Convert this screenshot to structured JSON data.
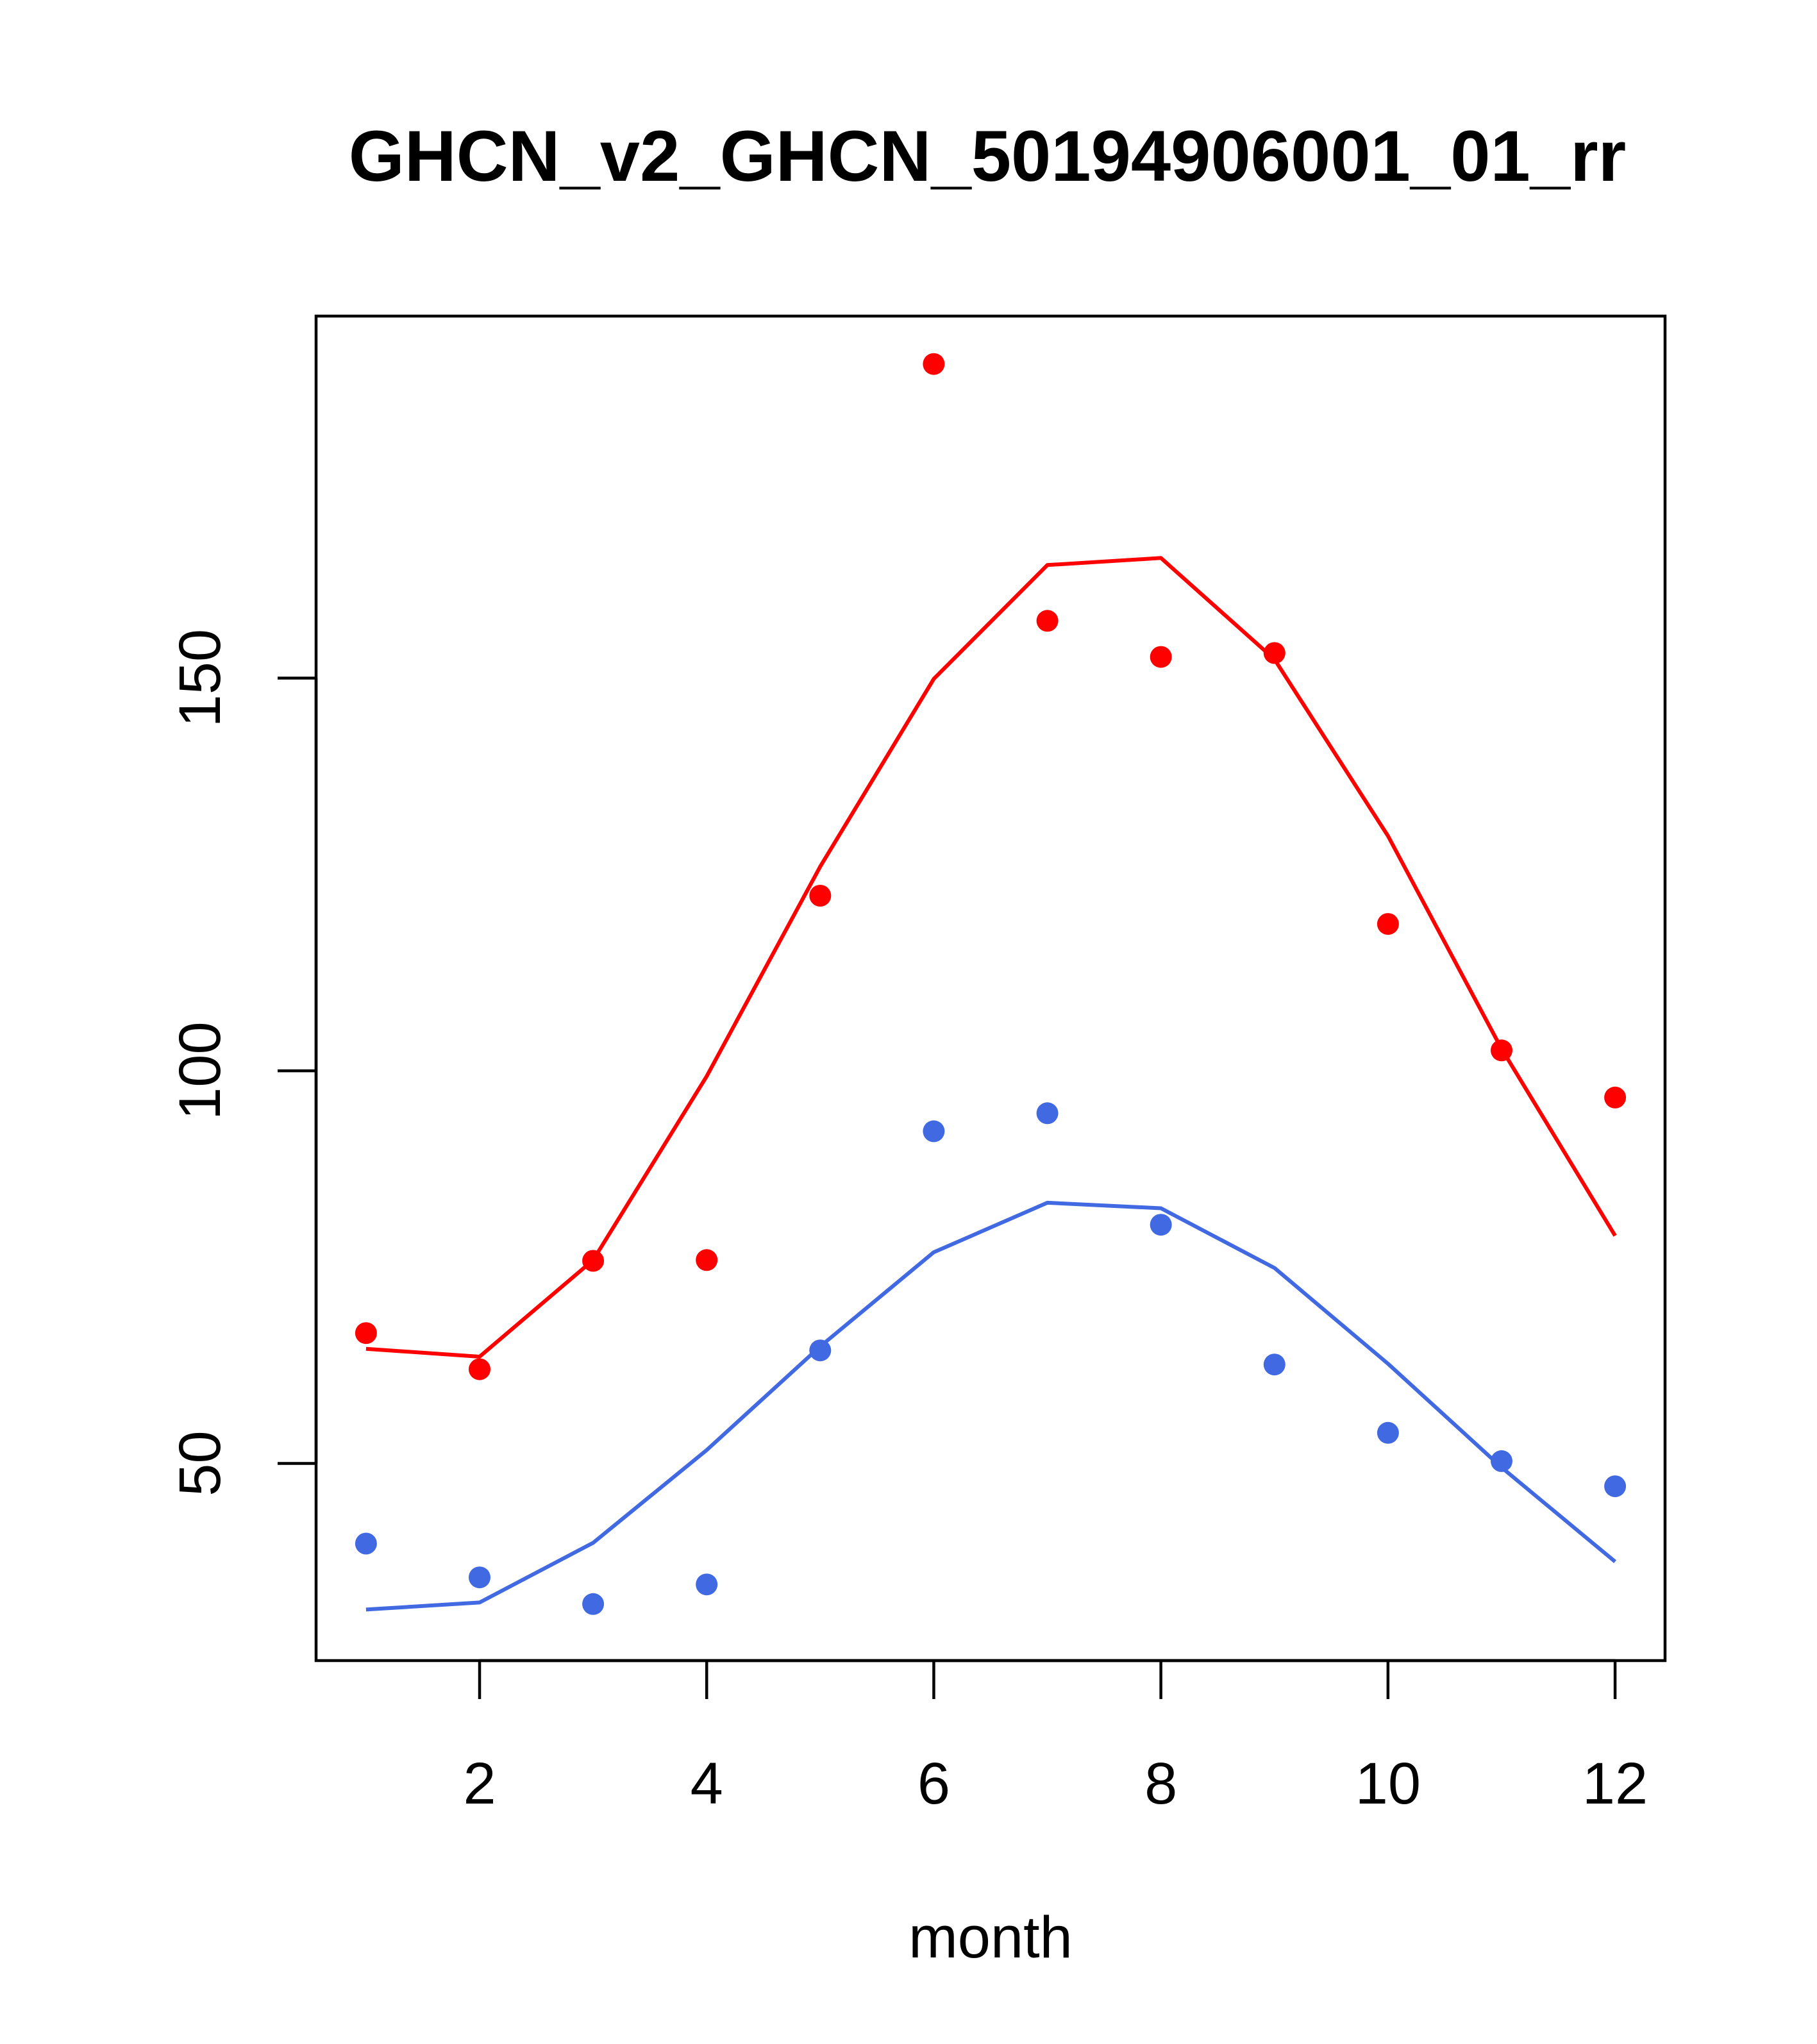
{
  "chart_data": {
    "type": "line",
    "title": "GHCN_v2_GHCN_50194906001_01_rr",
    "xlabel": "month",
    "ylabel": "",
    "xlim": [
      0.56,
      12.44
    ],
    "ylim": [
      24.9,
      196.1
    ],
    "xticks": [
      2,
      4,
      6,
      8,
      10,
      12
    ],
    "yticks": [
      50,
      100,
      150
    ],
    "x": [
      1,
      2,
      3,
      4,
      5,
      6,
      7,
      8,
      9,
      10,
      11,
      12
    ],
    "series": [
      {
        "color": "#ff0000",
        "line": [
          64.6,
          63.6,
          75.9,
          99.3,
          126.0,
          149.9,
          164.4,
          165.3,
          152.4,
          129.9,
          102.8,
          79.0
        ],
        "points": [
          66.6,
          62.0,
          75.8,
          75.9,
          122.3,
          190.0,
          157.3,
          152.7,
          153.2,
          118.7,
          102.6,
          96.6
        ]
      },
      {
        "color": "#4169e1",
        "line": [
          31.4,
          32.3,
          39.9,
          51.7,
          64.9,
          76.9,
          83.2,
          82.5,
          74.9,
          62.7,
          49.5,
          37.5
        ],
        "points": [
          39.8,
          35.5,
          32.1,
          34.6,
          64.4,
          92.3,
          94.6,
          80.4,
          62.6,
          53.9,
          50.3,
          47.1
        ]
      }
    ],
    "grid": false,
    "legend": "none"
  }
}
